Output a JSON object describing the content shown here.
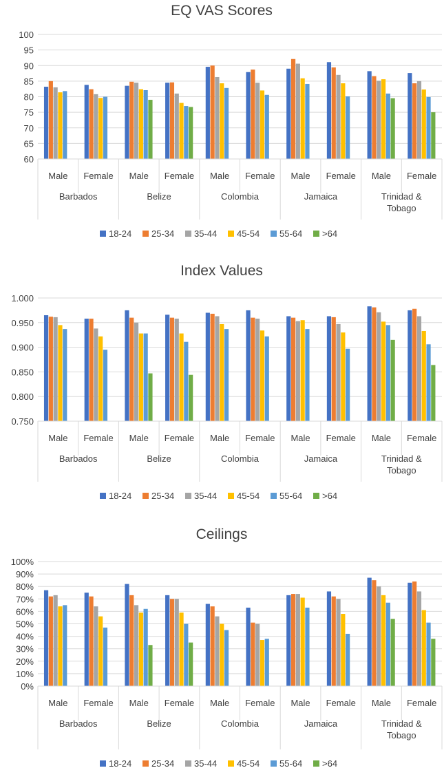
{
  "legend": [
    "18-24",
    "25-34",
    "35-44",
    "45-54",
    "55-64",
    ">64"
  ],
  "colors": [
    "#4472C4",
    "#ED7D31",
    "#A5A5A5",
    "#FFC000",
    "#5B9BD5",
    "#70AD47"
  ],
  "countries": [
    "Barbados",
    "Belize",
    "Colombia",
    "Jamaica",
    "Trinidad & Tobago"
  ],
  "sexes": [
    "Male",
    "Female"
  ],
  "chart_data": [
    {
      "type": "bar",
      "title": "EQ VAS Scores",
      "ylim": [
        60,
        100
      ],
      "yticks": [
        "60",
        "65",
        "70",
        "75",
        "80",
        "85",
        "90",
        "95",
        "100"
      ],
      "categories": [
        "Barbados Male",
        "Barbados Female",
        "Belize Male",
        "Belize Female",
        "Colombia Male",
        "Colombia Female",
        "Jamaica Male",
        "Jamaica Female",
        "Trinidad & Tobago Male",
        "Trinidad & Tobago Female"
      ],
      "series": [
        {
          "name": "18-24",
          "values": [
            83.2,
            83.8,
            83.5,
            84.5,
            89.6,
            87.9,
            89.0,
            91.1,
            88.2,
            87.6
          ]
        },
        {
          "name": "25-34",
          "values": [
            85.0,
            82.4,
            84.8,
            84.6,
            90.0,
            88.7,
            92.1,
            89.4,
            86.6,
            84.3
          ]
        },
        {
          "name": "35-44",
          "values": [
            83.0,
            80.8,
            84.5,
            81.0,
            86.3,
            84.5,
            90.6,
            87.0,
            85.1,
            85.0
          ]
        },
        {
          "name": "45-54",
          "values": [
            81.4,
            79.6,
            82.4,
            78.0,
            84.3,
            82.0,
            85.9,
            84.3,
            85.6,
            82.3
          ]
        },
        {
          "name": "55-64",
          "values": [
            81.8,
            80.0,
            82.1,
            77.0,
            82.8,
            80.6,
            84.1,
            80.1,
            81.0,
            79.9
          ]
        },
        {
          "name": ">64",
          "values": [
            null,
            null,
            79.0,
            76.7,
            null,
            null,
            null,
            null,
            79.5,
            75.0
          ]
        }
      ]
    },
    {
      "type": "bar",
      "title": "Index Values",
      "ylim": [
        0.75,
        1.0
      ],
      "yticks": [
        "0.750",
        "0.800",
        "0.850",
        "0.900",
        "0.950",
        "1.000"
      ],
      "categories": [
        "Barbados Male",
        "Barbados Female",
        "Belize Male",
        "Belize Female",
        "Colombia Male",
        "Colombia Female",
        "Jamaica Male",
        "Jamaica Female",
        "Trinidad & Tobago Male",
        "Trinidad & Tobago Female"
      ],
      "series": [
        {
          "name": "18-24",
          "values": [
            0.965,
            0.958,
            0.975,
            0.966,
            0.97,
            0.975,
            0.963,
            0.963,
            0.983,
            0.975
          ]
        },
        {
          "name": "25-34",
          "values": [
            0.962,
            0.958,
            0.96,
            0.96,
            0.968,
            0.96,
            0.96,
            0.961,
            0.981,
            0.978
          ]
        },
        {
          "name": "35-44",
          "values": [
            0.961,
            0.938,
            0.95,
            0.958,
            0.963,
            0.958,
            0.953,
            0.947,
            0.971,
            0.963
          ]
        },
        {
          "name": "45-54",
          "values": [
            0.945,
            0.922,
            0.928,
            0.928,
            0.947,
            0.934,
            0.955,
            0.93,
            0.952,
            0.933
          ]
        },
        {
          "name": "55-64",
          "values": [
            0.937,
            0.895,
            0.928,
            0.911,
            0.937,
            0.922,
            0.937,
            0.897,
            0.945,
            0.906
          ]
        },
        {
          "name": ">64",
          "values": [
            null,
            null,
            0.847,
            0.844,
            null,
            null,
            null,
            null,
            0.915,
            0.864
          ]
        }
      ]
    },
    {
      "type": "bar",
      "title": "Ceilings",
      "ylim": [
        0,
        100
      ],
      "yticks": [
        "0%",
        "10%",
        "20%",
        "30%",
        "40%",
        "50%",
        "60%",
        "70%",
        "80%",
        "90%",
        "100%"
      ],
      "categories": [
        "Barbados Male",
        "Barbados Female",
        "Belize Male",
        "Belize Female",
        "Colombia Male",
        "Colombia Female",
        "Jamaica Male",
        "Jamaica Female",
        "Trinidad & Tobago Male",
        "Trinidad & Tobago Female"
      ],
      "series": [
        {
          "name": "18-24",
          "values": [
            77,
            75,
            82,
            73,
            66,
            63,
            73,
            76,
            87,
            83
          ]
        },
        {
          "name": "25-34",
          "values": [
            72,
            72,
            73,
            70,
            64,
            51,
            74,
            72,
            85,
            84
          ]
        },
        {
          "name": "35-44",
          "values": [
            73,
            64,
            65,
            70,
            56,
            50,
            74,
            70,
            80,
            76
          ]
        },
        {
          "name": "45-54",
          "values": [
            64,
            56,
            59,
            59,
            50,
            37,
            71,
            58,
            73,
            61
          ]
        },
        {
          "name": "55-64",
          "values": [
            65,
            47,
            62,
            50,
            45,
            38,
            63,
            42,
            67,
            51
          ]
        },
        {
          "name": ">64",
          "values": [
            null,
            null,
            33,
            35,
            null,
            null,
            null,
            null,
            54,
            38
          ]
        }
      ]
    }
  ]
}
